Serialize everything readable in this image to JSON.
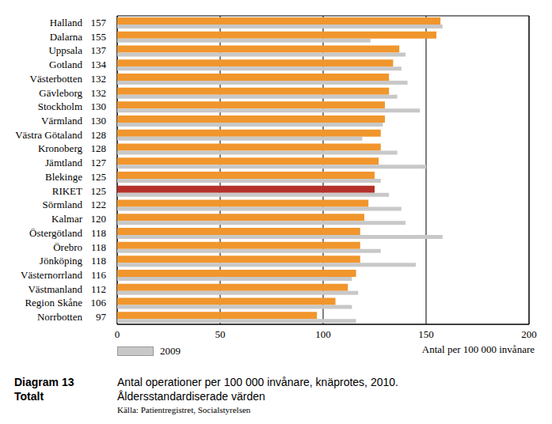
{
  "chart_data": {
    "type": "bar",
    "orientation": "horizontal",
    "diagram": "Diagram 13",
    "panel": "Totalt",
    "title": "Antal operationer per 100 000 invånare, knäprotes, 2010.",
    "subtitle": "Åldersstandardiserade värden",
    "source": "Källa: Patientregistret, Socialstyrelsen",
    "xlabel": "Antal per 100 000 invånare",
    "categories": [
      "Halland",
      "Dalarna",
      "Uppsala",
      "Gotland",
      "Västerbotten",
      "Gävleborg",
      "Stockholm",
      "Värmland",
      "Västra Götaland",
      "Kronoberg",
      "Jämtland",
      "Blekinge",
      "RIKET",
      "Sörmland",
      "Kalmar",
      "Östergötland",
      "Örebro",
      "Jönköping",
      "Västernorrland",
      "Västmanland",
      "Region Skåne",
      "Norrbotten"
    ],
    "series": [
      {
        "colors": [
          "#f0962d",
          "#f0962d",
          "#f0962d",
          "#f0962d",
          "#f0962d",
          "#f0962d",
          "#f0962d",
          "#f0962d",
          "#f0962d",
          "#f0962d",
          "#f0962d",
          "#f0962d",
          "#b5302a",
          "#f0962d",
          "#f0962d",
          "#f0962d",
          "#f0962d",
          "#f0962d",
          "#f0962d",
          "#f0962d",
          "#f0962d",
          "#f0962d"
        ],
        "values": [
          157,
          155,
          137,
          134,
          132,
          132,
          130,
          130,
          128,
          128,
          127,
          125,
          125,
          122,
          120,
          118,
          118,
          118,
          116,
          112,
          106,
          97
        ]
      },
      {
        "name": "2009",
        "color": "#c8c8c8",
        "values": [
          158,
          123,
          140,
          138,
          141,
          136,
          147,
          129,
          119,
          136,
          150,
          128,
          132,
          138,
          140,
          158,
          128,
          145,
          114,
          117,
          114,
          116
        ]
      }
    ],
    "xlim": [
      0,
      200
    ],
    "xticks": [
      0,
      50,
      100,
      150,
      200
    ],
    "grid": true,
    "legend": "lower left"
  }
}
